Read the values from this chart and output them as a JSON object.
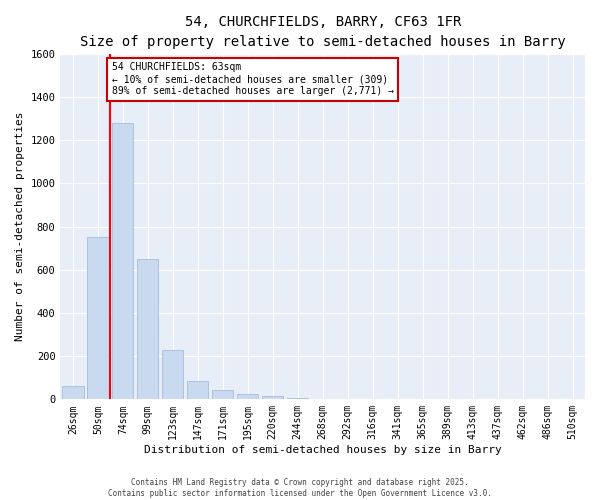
{
  "title": "54, CHURCHFIELDS, BARRY, CF63 1FR",
  "subtitle": "Size of property relative to semi-detached houses in Barry",
  "xlabel": "Distribution of semi-detached houses by size in Barry",
  "ylabel": "Number of semi-detached properties",
  "categories": [
    "26sqm",
    "50sqm",
    "74sqm",
    "99sqm",
    "123sqm",
    "147sqm",
    "171sqm",
    "195sqm",
    "220sqm",
    "244sqm",
    "268sqm",
    "292sqm",
    "316sqm",
    "341sqm",
    "365sqm",
    "389sqm",
    "413sqm",
    "437sqm",
    "462sqm",
    "486sqm",
    "510sqm"
  ],
  "values": [
    60,
    750,
    1280,
    650,
    230,
    85,
    45,
    25,
    15,
    8,
    3,
    1,
    0,
    0,
    0,
    0,
    0,
    0,
    0,
    0,
    0
  ],
  "bar_color": "#c9d9ef",
  "bar_edge_color": "#9ab5d9",
  "red_line_x": 1.5,
  "annotation_line1": "54 CHURCHFIELDS: 63sqm",
  "annotation_line2": "← 10% of semi-detached houses are smaller (309)",
  "annotation_line3": "89% of semi-detached houses are larger (2,771) →",
  "annotation_box_facecolor": "#ffffff",
  "annotation_box_edgecolor": "#cc0000",
  "ylim": [
    0,
    1600
  ],
  "yticks": [
    0,
    200,
    400,
    600,
    800,
    1000,
    1200,
    1400,
    1600
  ],
  "fig_background": "#ffffff",
  "plot_background": "#e8eef8",
  "grid_color": "#ffffff",
  "footer_line1": "Contains HM Land Registry data © Crown copyright and database right 2025.",
  "footer_line2": "Contains public sector information licensed under the Open Government Licence v3.0.",
  "title_fontsize": 10,
  "subtitle_fontsize": 9,
  "tick_fontsize": 7,
  "ylabel_fontsize": 8,
  "xlabel_fontsize": 8,
  "footer_fontsize": 5.5
}
